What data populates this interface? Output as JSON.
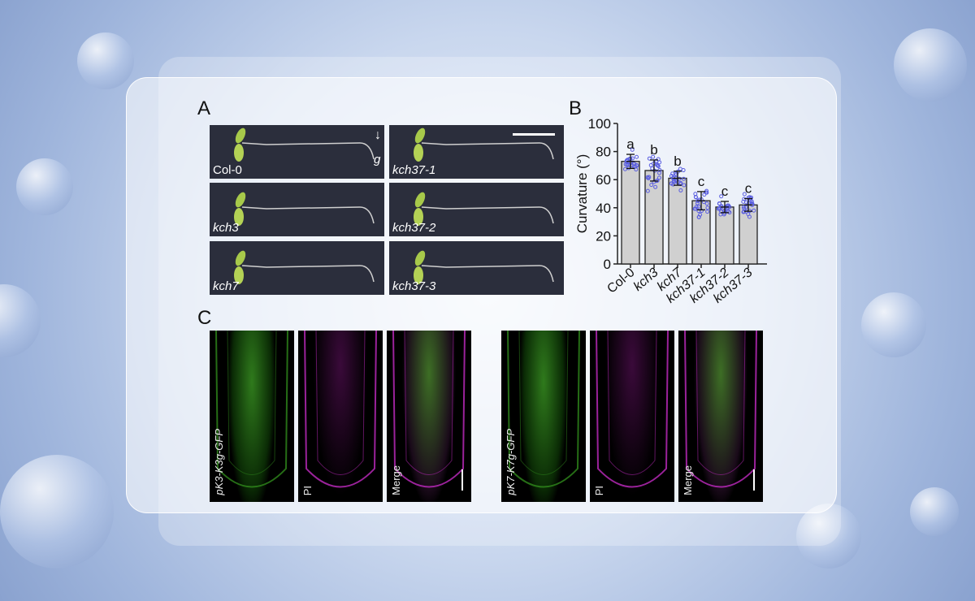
{
  "panel_labels": {
    "a": "A",
    "b": "B",
    "c": "C"
  },
  "panel_a": {
    "gravity_label": "g",
    "seedlings": [
      {
        "label": "Col-0",
        "italic": false
      },
      {
        "label": "kch37-1",
        "italic": true
      },
      {
        "label": "kch3",
        "italic": true
      },
      {
        "label": "kch37-2",
        "italic": true
      },
      {
        "label": "kch7",
        "italic": true
      },
      {
        "label": "kch37-3",
        "italic": true
      }
    ]
  },
  "chart_data": {
    "type": "bar",
    "title": "",
    "ylabel": "Curvature (°)",
    "xlabel": "",
    "ylim": [
      0,
      100
    ],
    "yticks": [
      0,
      20,
      40,
      60,
      80,
      100
    ],
    "categories": [
      "Col-0",
      "kch3",
      "kch7",
      "kch37-1",
      "kch37-2",
      "kch37-3"
    ],
    "values": [
      73,
      66.5,
      61,
      45,
      40.5,
      42
    ],
    "sd": [
      5,
      7.5,
      5,
      6.5,
      4,
      4.5
    ],
    "significance": [
      "a",
      "b",
      "b",
      "c",
      "c",
      "c"
    ],
    "bar_color": "#d0d0d0",
    "point_color": "#5a5ee0"
  },
  "panel_c": {
    "groups": [
      {
        "images": [
          {
            "label": "pK3-K3g-GFP",
            "type": "gfp"
          },
          {
            "label": "PI",
            "type": "pi"
          },
          {
            "label": "Merge",
            "type": "merge"
          }
        ]
      },
      {
        "images": [
          {
            "label": "pK7-K7g-GFP",
            "type": "gfp"
          },
          {
            "label": "PI",
            "type": "pi"
          },
          {
            "label": "Merge",
            "type": "merge"
          }
        ]
      }
    ]
  }
}
